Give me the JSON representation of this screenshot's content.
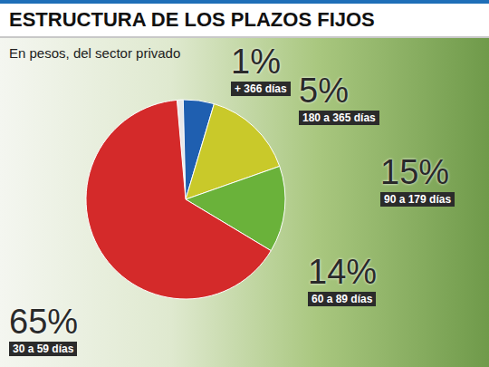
{
  "chart_data": {
    "type": "pie",
    "title": "ESTRUCTURA DE LOS PLAZOS FIJOS",
    "subtitle": "En pesos, del sector privado",
    "categories": [
      "+ 366 días",
      "180 a 365 días",
      "90 a 179 días",
      "60 a 89 días",
      "30 a 59 días"
    ],
    "values": [
      1,
      5,
      15,
      14,
      65
    ],
    "value_labels": [
      "1%",
      "5%",
      "15%",
      "14%",
      "65%"
    ],
    "colors": [
      "#e8e8e8",
      "#1f5fb0",
      "#c9c92a",
      "#6ab23a",
      "#d42a2a"
    ],
    "data_labels": true
  }
}
